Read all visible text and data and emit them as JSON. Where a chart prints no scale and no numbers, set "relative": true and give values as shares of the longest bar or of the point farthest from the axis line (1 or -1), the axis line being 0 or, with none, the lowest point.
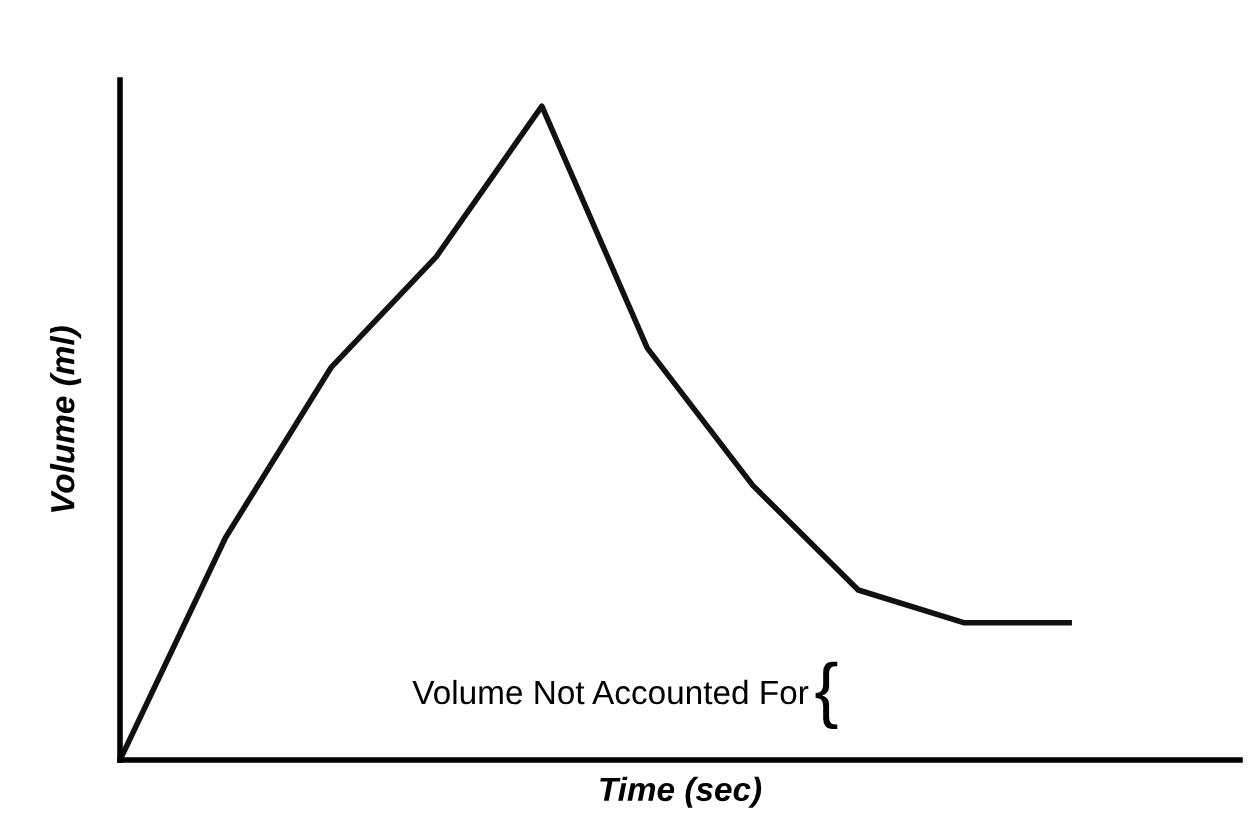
{
  "chart_data": {
    "type": "line",
    "relative": true,
    "xlabel": "Time (sec)",
    "ylabel": "Volume (ml)",
    "categories": [
      null,
      null,
      null,
      null,
      null,
      null,
      null,
      null,
      null,
      null
    ],
    "series": [
      {
        "color": "#111111",
        "values": [
          0,
          0.34,
          0.6,
          0.77,
          1,
          0.63,
          0.42,
          0.26,
          0.21,
          0.21
        ]
      }
    ],
    "annotations": [
      "Volume Not Accounted For",
      "{"
    ],
    "grid": false,
    "legend": false,
    "marker": "none",
    "line_style": "solid",
    "tick_labels": false
  }
}
